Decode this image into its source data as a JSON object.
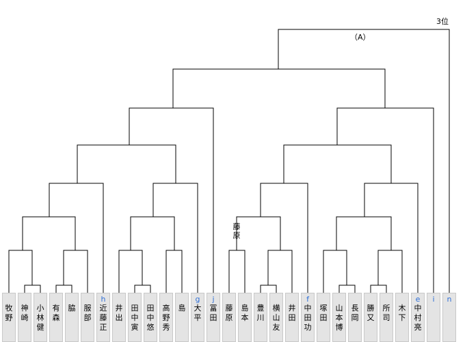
{
  "labels": {
    "place": "3位",
    "bout": "（A）",
    "side_name": "藤原"
  },
  "players": [
    {
      "seed": "",
      "name": "牧野"
    },
    {
      "seed": "",
      "name": "神崎"
    },
    {
      "seed": "",
      "name": "小林健"
    },
    {
      "seed": "",
      "name": "有森"
    },
    {
      "seed": "",
      "name": "脇"
    },
    {
      "seed": "",
      "name": "服部"
    },
    {
      "seed": "h",
      "name": "近藤正"
    },
    {
      "seed": "",
      "name": "井出"
    },
    {
      "seed": "",
      "name": "田中寅"
    },
    {
      "seed": "",
      "name": "田中悠"
    },
    {
      "seed": "",
      "name": "高野秀"
    },
    {
      "seed": "",
      "name": "島"
    },
    {
      "seed": "g",
      "name": "大平"
    },
    {
      "seed": "j",
      "name": "冨田"
    },
    {
      "seed": "",
      "name": "藤原"
    },
    {
      "seed": "",
      "name": "島本"
    },
    {
      "seed": "",
      "name": "豊川"
    },
    {
      "seed": "",
      "name": "横山友"
    },
    {
      "seed": "",
      "name": "井田"
    },
    {
      "seed": "f",
      "name": "中田功"
    },
    {
      "seed": "",
      "name": "塚田"
    },
    {
      "seed": "",
      "name": "山本博"
    },
    {
      "seed": "",
      "name": "長岡"
    },
    {
      "seed": "",
      "name": "勝又"
    },
    {
      "seed": "",
      "name": "所司"
    },
    {
      "seed": "",
      "name": "木下"
    },
    {
      "seed": "e",
      "name": "中村亮"
    },
    {
      "seed": "i",
      "name": ""
    },
    {
      "seed": "n",
      "name": ""
    }
  ]
}
